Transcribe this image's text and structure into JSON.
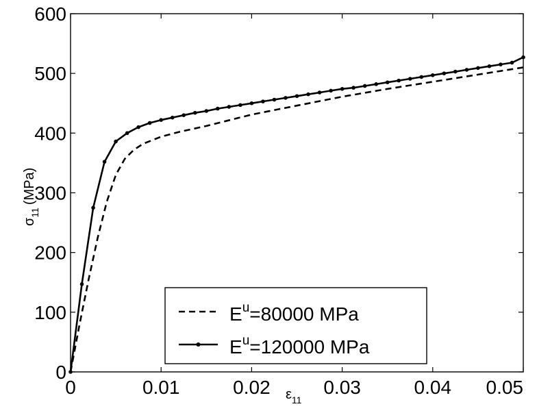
{
  "chart_data": {
    "type": "line",
    "xlabel": {
      "symbol": "ε",
      "subscript": "11"
    },
    "ylabel": {
      "symbol": "σ",
      "subscript": "11",
      "unit": "(MPa)"
    },
    "xlim": [
      0,
      0.05
    ],
    "ylim": [
      0,
      600
    ],
    "xticks": [
      0,
      0.01,
      0.02,
      0.03,
      0.04,
      0.05
    ],
    "xtick_labels": [
      "0",
      "0.01",
      "0.02",
      "0.03",
      "0.04",
      "0.05"
    ],
    "yticks": [
      0,
      100,
      200,
      300,
      400,
      500,
      600
    ],
    "ytick_labels": [
      "0",
      "100",
      "200",
      "300",
      "400",
      "500",
      "600"
    ],
    "grid": false,
    "legend_position": "bottom-right",
    "series": [
      {
        "legend": {
          "base": "E",
          "sup": "u",
          "rest": "=80000 MPa"
        },
        "style": "dashed",
        "color": "#000000",
        "markers": false,
        "x": [
          0,
          0.001,
          0.002,
          0.003,
          0.004,
          0.005,
          0.006,
          0.007,
          0.008,
          0.01,
          0.012,
          0.015,
          0.02,
          0.025,
          0.03,
          0.035,
          0.04,
          0.045,
          0.05
        ],
        "y": [
          0,
          80,
          155,
          225,
          285,
          330,
          357,
          372,
          382,
          394,
          402,
          412,
          431,
          446,
          461,
          474,
          486,
          498,
          510
        ]
      },
      {
        "legend": {
          "base": "E",
          "sup": "u",
          "rest": "=120000 MPa"
        },
        "style": "solid",
        "color": "#000000",
        "markers": true,
        "x": [
          0,
          0.00125,
          0.0025,
          0.00375,
          0.005,
          0.00625,
          0.0075,
          0.00875,
          0.01,
          0.01125,
          0.0125,
          0.01375,
          0.015,
          0.01625,
          0.0175,
          0.01875,
          0.02,
          0.02125,
          0.0225,
          0.02375,
          0.025,
          0.02625,
          0.0275,
          0.02875,
          0.03,
          0.03125,
          0.0325,
          0.03375,
          0.035,
          0.03625,
          0.0375,
          0.03875,
          0.04,
          0.04125,
          0.0425,
          0.04375,
          0.045,
          0.04625,
          0.0475,
          0.04875,
          0.05
        ],
        "y": [
          0,
          147,
          275,
          352,
          386,
          400,
          410,
          417,
          422,
          426,
          430,
          434,
          437,
          441,
          444,
          447,
          450,
          453,
          456,
          459,
          462,
          465,
          468,
          471,
          474,
          476,
          479,
          482,
          485,
          488,
          491,
          494,
          497,
          500,
          503,
          506,
          509,
          512,
          515,
          518,
          527
        ]
      }
    ]
  }
}
